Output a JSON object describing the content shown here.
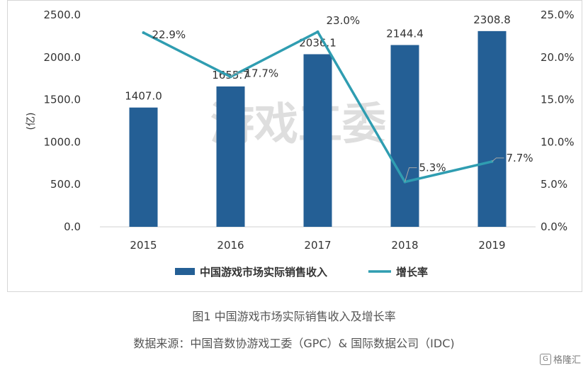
{
  "chart_data": {
    "type": "bar+line",
    "categories": [
      "2015",
      "2016",
      "2017",
      "2018",
      "2019"
    ],
    "series": [
      {
        "name": "中国游戏市场实际销售收入",
        "type": "bar",
        "axis": "left",
        "values": [
          1407.0,
          1655.7,
          2036.1,
          2144.4,
          2308.8
        ],
        "labels": [
          "1407.0",
          "1655.7",
          "2036.1",
          "2144.4",
          "2308.8"
        ]
      },
      {
        "name": "增长率",
        "type": "line",
        "axis": "right",
        "values": [
          22.9,
          17.7,
          23.0,
          5.3,
          7.7
        ],
        "labels": [
          "22.9%",
          "17.7%",
          "23.0%",
          "5.3%",
          "7.7%"
        ]
      }
    ],
    "ylabel": "(亿)",
    "ylim": [
      0,
      2500
    ],
    "y2lim": [
      0,
      25
    ],
    "yticks": [
      "0.0",
      "500.0",
      "1000.0",
      "1500.0",
      "2000.0",
      "2500.0"
    ],
    "y2ticks": [
      "0.0%",
      "5.0%",
      "10.0%",
      "15.0%",
      "20.0%",
      "25.0%"
    ],
    "grid": false,
    "legend_position": "bottom",
    "watermark": "游戏工委"
  },
  "colors": {
    "bar": "#245f95",
    "line": "#2f9db1",
    "text": "#333333"
  },
  "caption": {
    "title": "图1 中国游戏市场实际销售收入及增长率",
    "source": "数据来源：中国音数协游戏工委（GPC）& 国际数据公司（IDC)"
  },
  "brand": "格隆汇"
}
